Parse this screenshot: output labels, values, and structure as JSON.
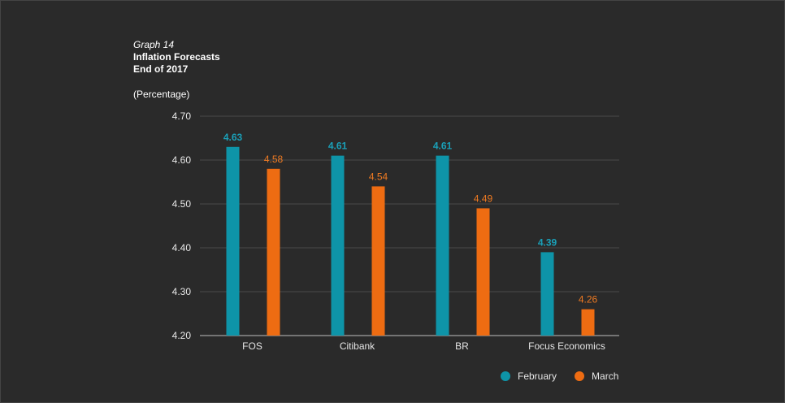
{
  "chart_data": {
    "type": "bar",
    "graph_number": "Graph 14",
    "title": "Inflation Forecasts",
    "subtitle": "End of 2017",
    "ylabel": "(Percentage)",
    "ylim": [
      4.2,
      4.7
    ],
    "yticks": [
      "4.70",
      "4.60",
      "4.50",
      "4.40",
      "4.30",
      "4.20"
    ],
    "yticks_values": [
      4.7,
      4.6,
      4.5,
      4.4,
      4.3,
      4.2
    ],
    "categories": [
      "FOS",
      "Citibank",
      "BR",
      "Focus Economics"
    ],
    "series": [
      {
        "name": "February",
        "color": "#0e94a8",
        "label_color": "#1aa0b8",
        "bold_labels": true,
        "values": [
          4.63,
          4.61,
          4.61,
          4.39
        ],
        "labels": [
          "4.63",
          "4.61",
          "4.61",
          "4.39"
        ]
      },
      {
        "name": "March",
        "color": "#ee6c12",
        "label_color": "#ee7a22",
        "bold_labels": false,
        "values": [
          4.58,
          4.54,
          4.49,
          4.26
        ],
        "labels": [
          "4.58",
          "4.54",
          "4.49",
          "4.26"
        ]
      }
    ],
    "legend_position": "bottom-right",
    "grid": true
  }
}
